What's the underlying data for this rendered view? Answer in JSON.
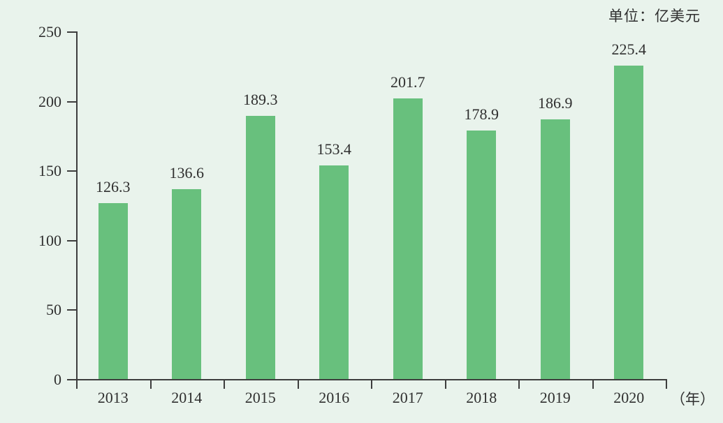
{
  "unit_label": "单位：亿美元",
  "x_axis_suffix": "（年）",
  "colors": {
    "background": "#e9f3ec",
    "bar": "#68c07d",
    "axis": "#3d3d3d",
    "text": "#2f2f2f"
  },
  "chart_data": {
    "type": "bar",
    "categories": [
      "2013",
      "2014",
      "2015",
      "2016",
      "2017",
      "2018",
      "2019",
      "2020"
    ],
    "values": [
      126.3,
      136.6,
      189.3,
      153.4,
      201.7,
      178.9,
      186.9,
      225.4
    ],
    "data_labels": [
      "126.3",
      "136.6",
      "189.3",
      "153.4",
      "201.7",
      "178.9",
      "186.9",
      "225.4"
    ],
    "title": "",
    "xlabel": "（年）",
    "ylabel": "单位：亿美元",
    "ylim": [
      0,
      250
    ],
    "yticks": [
      0,
      50,
      100,
      150,
      200,
      250
    ],
    "grid": false,
    "legend_position": "none"
  }
}
